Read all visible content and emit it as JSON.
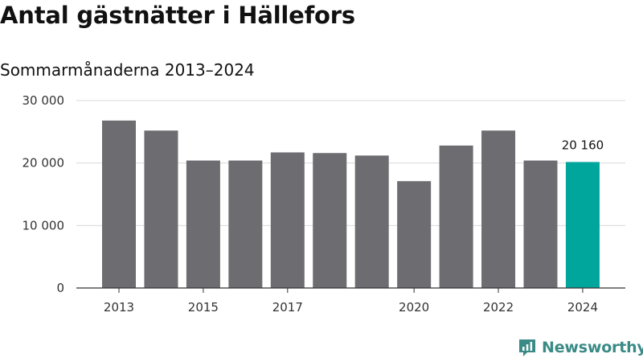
{
  "title": "Antal gästnätter i Hällefors",
  "subtitle": "Sommarmånaderna 2013–2024",
  "brand": {
    "name": "Newsworthy",
    "icon": "newsworthy-logo-icon",
    "color": "#3a8a85"
  },
  "colors": {
    "bar": "#6d6c71",
    "highlight": "#00a59b",
    "grid": "#d9d9d9",
    "axis": "#333333"
  },
  "chart_data": {
    "type": "bar",
    "title": "Antal gästnätter i Hällefors",
    "subtitle": "Sommarmånaderna 2013–2024",
    "categories": [
      "2013",
      "2014",
      "2015",
      "2016",
      "2017",
      "2018",
      "2019",
      "2020",
      "2021",
      "2022",
      "2023",
      "2024"
    ],
    "values": [
      26800,
      25200,
      20400,
      20400,
      21700,
      21600,
      21200,
      17100,
      22800,
      25200,
      20400,
      20160
    ],
    "x_tick_labels": [
      "2013",
      "2015",
      "2017",
      "2020",
      "2022",
      "2024"
    ],
    "y_ticks": [
      0,
      10000,
      20000,
      30000
    ],
    "y_tick_labels": [
      "0",
      "10 000",
      "20 000",
      "30 000"
    ],
    "ylim": [
      0,
      30000
    ],
    "xlabel": "",
    "ylabel": "",
    "grid": true,
    "highlight": {
      "category": "2024",
      "label": "20 160"
    }
  }
}
